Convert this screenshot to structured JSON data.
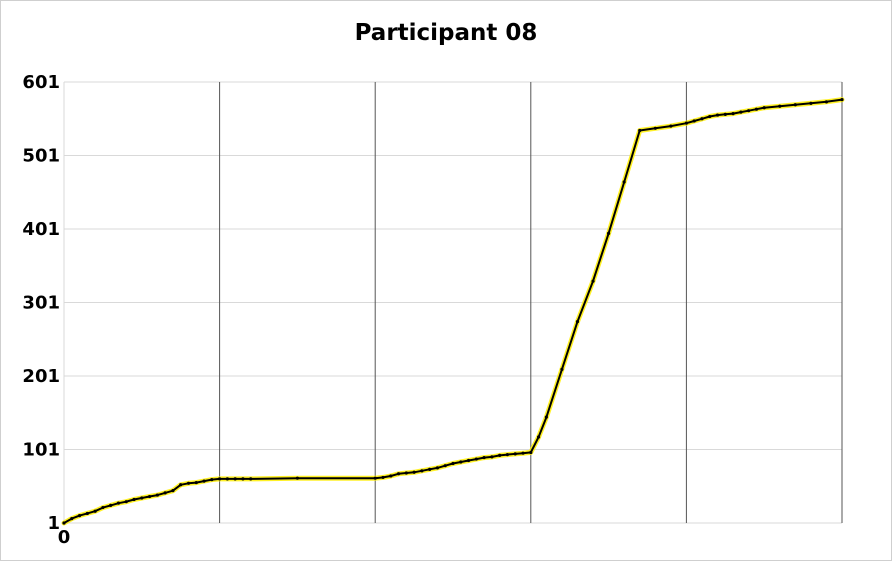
{
  "chart_data": {
    "type": "line",
    "title": "Participant 08",
    "xlabel": "",
    "ylabel": "",
    "xlim": [
      0,
      5
    ],
    "ylim": [
      1,
      601
    ],
    "y_ticks": [
      "601",
      "501",
      "401",
      "301",
      "201",
      "101",
      "1"
    ],
    "x_ticks": [
      "0"
    ],
    "grid": true,
    "legend": "none",
    "colors": {
      "line": "#000000",
      "marker": "#ffee00",
      "grid": "#d9d9d9",
      "vertical_grid": "#555555"
    },
    "series": [
      {
        "x": [
          0,
          0.05,
          0.1,
          0.15,
          0.2,
          0.25,
          0.3,
          0.35,
          0.4,
          0.45,
          0.5,
          0.55,
          0.6,
          0.65,
          0.7,
          0.75,
          0.8,
          0.85,
          0.9,
          0.95,
          1.0,
          1.05,
          1.1,
          1.15,
          1.2,
          1.5,
          2.0,
          2.05,
          2.1,
          2.15,
          2.2,
          2.25,
          2.3,
          2.35,
          2.4,
          2.45,
          2.5,
          2.55,
          2.6,
          2.65,
          2.7,
          2.75,
          2.8,
          2.85,
          2.9,
          2.95,
          3.0,
          3.05,
          3.1,
          3.2,
          3.3,
          3.4,
          3.5,
          3.6,
          3.7,
          3.8,
          3.9,
          4.0,
          4.05,
          4.1,
          4.15,
          4.2,
          4.25,
          4.3,
          4.35,
          4.4,
          4.45,
          4.5,
          4.6,
          4.7,
          4.8,
          4.9,
          5.0
        ],
        "y": [
          1,
          7,
          11,
          14,
          17,
          22,
          25,
          28,
          30,
          33,
          35,
          37,
          39,
          42,
          45,
          53,
          55,
          56,
          58,
          60,
          61,
          61,
          61,
          61,
          61,
          62,
          62,
          63,
          65,
          68,
          69,
          70,
          72,
          74,
          76,
          79,
          82,
          84,
          86,
          88,
          90,
          91,
          93,
          94,
          95,
          96,
          97,
          118,
          145,
          210,
          275,
          330,
          395,
          465,
          535,
          538,
          541,
          545,
          548,
          551,
          554,
          556,
          557,
          558,
          560,
          562,
          564,
          566,
          568,
          570,
          572,
          574,
          577
        ]
      }
    ]
  }
}
